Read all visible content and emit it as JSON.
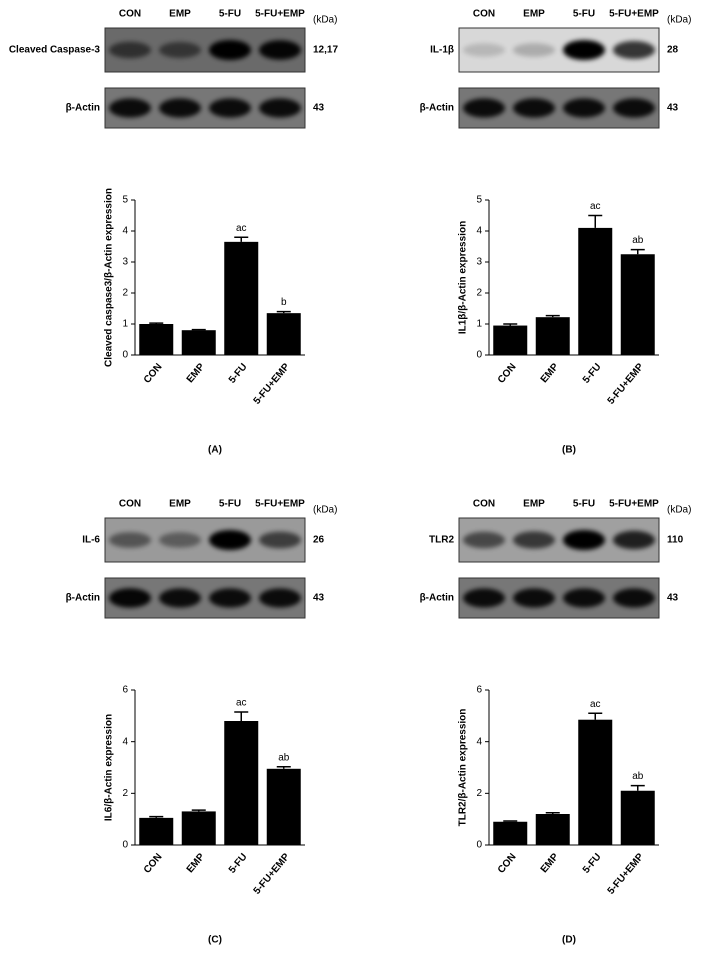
{
  "chart_data": [
    {
      "type": "bar",
      "panel": "(A)",
      "blot": {
        "lanes": [
          "CON",
          "EMP",
          "5-FU",
          "5-FU+EMP"
        ],
        "unit": "(kDa)",
        "rows": [
          {
            "label": "Cleaved Caspase-3",
            "kda": "12,17"
          },
          {
            "label": "β-Actin",
            "kda": "43"
          }
        ]
      },
      "ylabel": "Cleaved caspase3/β-Actin expression",
      "categories": [
        "CON",
        "EMP",
        "5-FU",
        "5-FU+EMP"
      ],
      "values": [
        1.0,
        0.8,
        3.65,
        1.35
      ],
      "errors": [
        0.03,
        0.02,
        0.15,
        0.05
      ],
      "annotations": [
        null,
        null,
        "ac",
        "b"
      ],
      "color": "#000000",
      "ylim": [
        0,
        5
      ],
      "yticks": [
        0,
        1,
        2,
        3,
        4,
        5
      ]
    },
    {
      "type": "bar",
      "panel": "(B)",
      "blot": {
        "lanes": [
          "CON",
          "EMP",
          "5-FU",
          "5-FU+EMP"
        ],
        "unit": "(kDa)",
        "rows": [
          {
            "label": "IL-1β",
            "kda": "28"
          },
          {
            "label": "β-Actin",
            "kda": "43"
          }
        ]
      },
      "ylabel": "IL1β/β-Actin expression",
      "categories": [
        "CON",
        "EMP",
        "5-FU",
        "5-FU+EMP"
      ],
      "values": [
        0.95,
        1.22,
        4.1,
        3.25
      ],
      "errors": [
        0.05,
        0.05,
        0.4,
        0.15
      ],
      "annotations": [
        null,
        null,
        "ac",
        "ab"
      ],
      "color": "#000000",
      "ylim": [
        0,
        5
      ],
      "yticks": [
        0,
        1,
        2,
        3,
        4,
        5
      ]
    },
    {
      "type": "bar",
      "panel": "(C)",
      "blot": {
        "lanes": [
          "CON",
          "EMP",
          "5-FU",
          "5-FU+EMP"
        ],
        "unit": "(kDa)",
        "rows": [
          {
            "label": "IL-6",
            "kda": "26"
          },
          {
            "label": "β-Actin",
            "kda": "43"
          }
        ]
      },
      "ylabel": "IL6/β-Actin expression",
      "categories": [
        "CON",
        "EMP",
        "5-FU",
        "5-FU+EMP"
      ],
      "values": [
        1.05,
        1.3,
        4.8,
        2.95
      ],
      "errors": [
        0.05,
        0.05,
        0.35,
        0.08
      ],
      "annotations": [
        null,
        null,
        "ac",
        "ab"
      ],
      "color": "#000000",
      "ylim": [
        0,
        6
      ],
      "yticks": [
        0,
        2,
        4,
        6
      ]
    },
    {
      "type": "bar",
      "panel": "(D)",
      "blot": {
        "lanes": [
          "CON",
          "EMP",
          "5-FU",
          "5-FU+EMP"
        ],
        "unit": "(kDa)",
        "rows": [
          {
            "label": "TLR2",
            "kda": "110"
          },
          {
            "label": "β-Actin",
            "kda": "43"
          }
        ]
      },
      "ylabel": "TLR2/β-Actin expression",
      "categories": [
        "CON",
        "EMP",
        "5-FU",
        "5-FU+EMP"
      ],
      "values": [
        0.9,
        1.2,
        4.85,
        2.1
      ],
      "errors": [
        0.03,
        0.05,
        0.25,
        0.2
      ],
      "annotations": [
        null,
        null,
        "ac",
        "ab"
      ],
      "color": "#000000",
      "ylim": [
        0,
        6
      ],
      "yticks": [
        0,
        2,
        4,
        6
      ]
    }
  ]
}
